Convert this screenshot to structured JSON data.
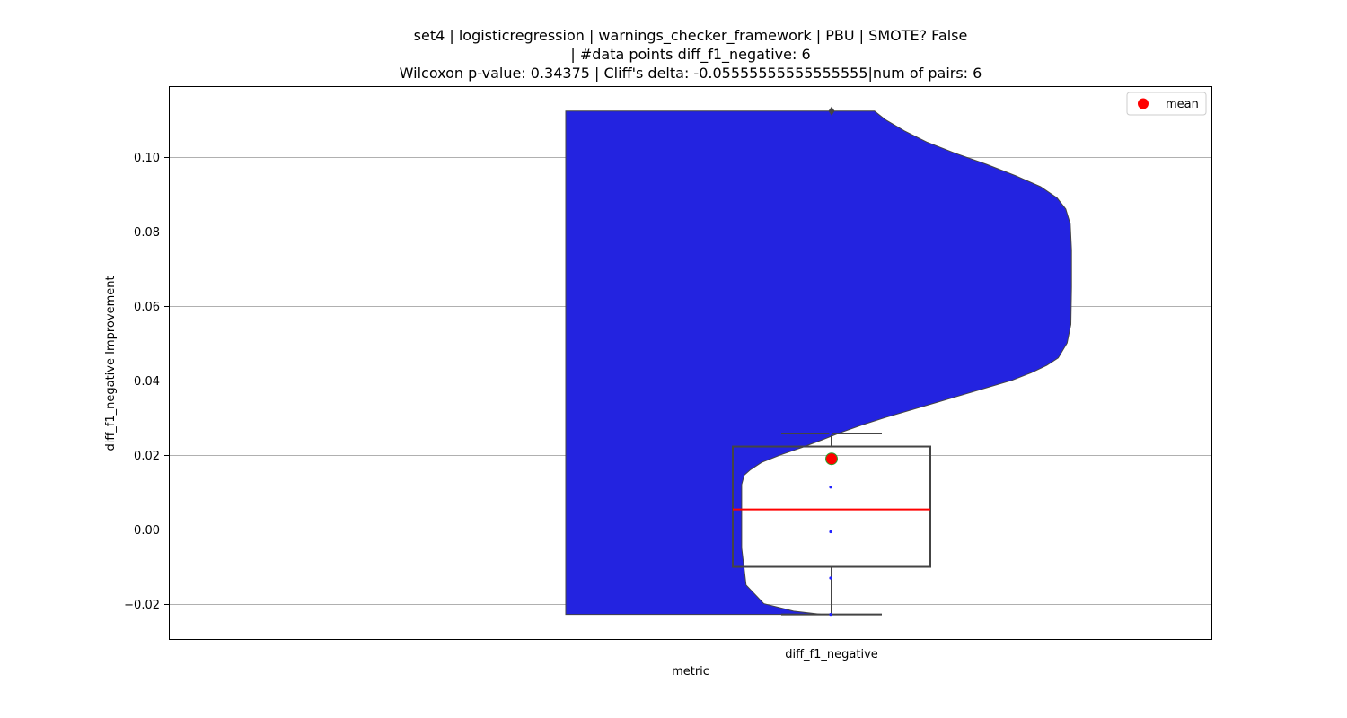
{
  "chart_data": {
    "type": "violin+box",
    "title_lines": [
      "set4 | logisticregression | warnings_checker_framework | PBU | SMOTE? False",
      "| #data points diff_f1_negative: 6",
      "Wilcoxon p-value: 0.34375 | Cliff's delta: -0.05555555555555555|num of pairs: 6"
    ],
    "xlabel": "metric",
    "ylabel": "diff_f1_negative Improvement",
    "categories": [
      "diff_f1_negative"
    ],
    "ylim": [
      -0.0295,
      0.119
    ],
    "yticks": [
      -0.02,
      0.0,
      0.02,
      0.04,
      0.06,
      0.08,
      0.1
    ],
    "ytick_labels": [
      "−0.02",
      "0.00",
      "0.02",
      "0.04",
      "0.06",
      "0.08",
      "0.10"
    ],
    "grid": true,
    "legend": {
      "placement": "top-right",
      "entries": [
        {
          "label": "mean",
          "color": "#ff0000",
          "marker": "circle"
        }
      ]
    },
    "box": {
      "whisker_low": -0.0229,
      "q1": -0.0101,
      "median": 0.0053,
      "q3": 0.0222,
      "whisker_high": 0.0257,
      "mean": 0.0189,
      "outliers": [
        0.1123
      ]
    },
    "points": [
      -0.0229,
      -0.0131,
      -0.0007,
      0.0113,
      0.0257,
      0.1123
    ],
    "violin": {
      "fill_color": "#2323e0",
      "edge_color": "#444444",
      "profile": [
        [
          -0.0229,
          0.015
        ],
        [
          -0.022,
          0.06
        ],
        [
          -0.02,
          0.107
        ],
        [
          -0.015,
          0.135
        ],
        [
          -0.005,
          0.142
        ],
        [
          0.005,
          0.142
        ],
        [
          0.012,
          0.142
        ],
        [
          0.0145,
          0.138
        ],
        [
          0.016,
          0.128
        ],
        [
          0.018,
          0.11
        ],
        [
          0.02,
          0.08
        ],
        [
          0.022,
          0.046
        ],
        [
          0.024,
          0.015
        ],
        [
          0.026,
          -0.015
        ],
        [
          0.028,
          -0.048
        ],
        [
          0.03,
          -0.085
        ],
        [
          0.032,
          -0.125
        ],
        [
          0.034,
          -0.165
        ],
        [
          0.036,
          -0.205
        ],
        [
          0.038,
          -0.245
        ],
        [
          0.04,
          -0.285
        ],
        [
          0.042,
          -0.315
        ],
        [
          0.044,
          -0.34
        ],
        [
          0.046,
          -0.358
        ],
        [
          0.05,
          -0.372
        ],
        [
          0.055,
          -0.378
        ],
        [
          0.065,
          -0.379
        ],
        [
          0.075,
          -0.379
        ],
        [
          0.082,
          -0.377
        ],
        [
          0.086,
          -0.37
        ],
        [
          0.089,
          -0.356
        ],
        [
          0.092,
          -0.33
        ],
        [
          0.095,
          -0.29
        ],
        [
          0.098,
          -0.245
        ],
        [
          0.101,
          -0.195
        ],
        [
          0.104,
          -0.15
        ],
        [
          0.107,
          -0.115
        ],
        [
          0.11,
          -0.085
        ],
        [
          0.1123,
          -0.068
        ]
      ]
    },
    "colors": {
      "median": "#ff0000",
      "mean_marker": "#ff0000",
      "mean_edge": "#2ca02c",
      "box_edge": "#444444",
      "outlier": "#444444",
      "strip_points": "#2222ff",
      "grid": "#b0b0b0"
    }
  }
}
